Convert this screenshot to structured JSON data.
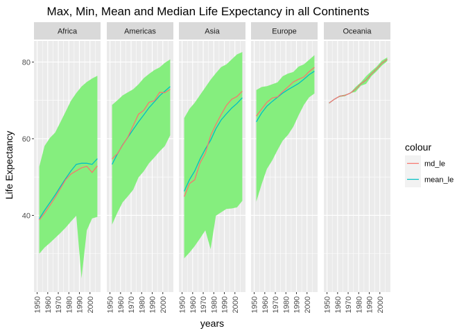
{
  "chart_data": {
    "type": "line",
    "title": "Max, Min, Mean and Median Life Expectancy in all Continents",
    "xlabel": "years",
    "ylabel": "Life Expectancy",
    "xlim": [
      1947,
      2010
    ],
    "ylim": [
      20,
      85.5
    ],
    "x_ticks": [
      1950,
      1960,
      1970,
      1980,
      1990,
      2000
    ],
    "y_ticks": [
      40,
      60,
      80
    ],
    "grid": true,
    "legend": {
      "title": "colour",
      "position": "right",
      "entries": [
        {
          "name": "md_le",
          "color": "#F8766D"
        },
        {
          "name": "mean_le",
          "color": "#00BFC4"
        }
      ]
    },
    "ribbon_color": "#85EE7E",
    "years": [
      1952,
      1957,
      1962,
      1967,
      1972,
      1977,
      1982,
      1987,
      1992,
      1997,
      2002,
      2007
    ],
    "panels": [
      {
        "name": "Africa",
        "max": [
          52.7,
          58.1,
          60.2,
          61.6,
          64.3,
          67.1,
          69.9,
          71.9,
          73.6,
          74.8,
          75.7,
          76.4
        ],
        "min": [
          30.0,
          31.6,
          32.8,
          34.1,
          35.4,
          36.8,
          38.4,
          39.9,
          23.6,
          36.1,
          39.2,
          39.6
        ],
        "mean": [
          39.1,
          41.3,
          43.3,
          45.3,
          47.5,
          49.6,
          51.6,
          53.3,
          53.6,
          53.6,
          53.3,
          54.8
        ],
        "median": [
          38.8,
          40.6,
          42.6,
          44.7,
          47.0,
          49.3,
          50.8,
          51.6,
          52.4,
          52.8,
          51.2,
          52.9
        ]
      },
      {
        "name": "Americas",
        "max": [
          68.8,
          70.0,
          71.3,
          72.1,
          72.9,
          74.2,
          75.8,
          76.9,
          77.9,
          78.6,
          79.8,
          80.7
        ],
        "min": [
          37.6,
          40.7,
          43.4,
          45.0,
          46.7,
          49.9,
          51.5,
          53.6,
          55.1,
          56.7,
          58.1,
          60.9
        ],
        "mean": [
          53.3,
          56.0,
          58.4,
          60.4,
          62.4,
          64.4,
          66.2,
          68.1,
          69.6,
          71.2,
          72.4,
          73.6
        ],
        "median": [
          54.7,
          56.1,
          58.3,
          60.5,
          63.4,
          66.4,
          67.4,
          69.5,
          69.9,
          72.1,
          72.0,
          72.9
        ]
      },
      {
        "name": "Asia",
        "max": [
          65.4,
          67.8,
          69.4,
          71.4,
          73.4,
          75.4,
          77.1,
          78.7,
          79.4,
          80.7,
          82.0,
          82.6
        ],
        "min": [
          28.8,
          30.3,
          32.0,
          34.0,
          36.1,
          31.2,
          39.9,
          40.8,
          41.7,
          41.8,
          42.1,
          43.8
        ],
        "mean": [
          46.3,
          49.3,
          51.6,
          54.7,
          57.3,
          59.6,
          62.6,
          64.9,
          66.5,
          68.0,
          69.2,
          70.7
        ],
        "median": [
          44.9,
          48.3,
          49.3,
          53.7,
          56.2,
          60.8,
          63.7,
          66.3,
          68.7,
          70.3,
          71.0,
          72.4
        ]
      },
      {
        "name": "Europe",
        "max": [
          72.7,
          73.5,
          73.7,
          74.2,
          74.7,
          76.3,
          77.0,
          77.4,
          78.8,
          79.4,
          80.6,
          81.8
        ],
        "min": [
          43.6,
          48.1,
          52.1,
          54.3,
          57.0,
          59.5,
          61.0,
          63.1,
          66.1,
          68.8,
          70.8,
          71.8
        ],
        "mean": [
          64.4,
          66.7,
          68.5,
          69.7,
          70.8,
          71.9,
          72.8,
          73.6,
          74.4,
          75.5,
          76.7,
          77.6
        ],
        "median": [
          65.9,
          67.7,
          69.5,
          70.6,
          70.9,
          72.3,
          73.5,
          74.8,
          75.5,
          76.1,
          77.5,
          78.6
        ]
      },
      {
        "name": "Oceania",
        "max": [
          69.4,
          70.3,
          71.2,
          71.5,
          71.9,
          73.5,
          74.7,
          76.3,
          77.6,
          78.8,
          80.4,
          81.2
        ],
        "min": [
          69.1,
          70.3,
          70.9,
          71.1,
          71.9,
          72.2,
          73.8,
          74.3,
          76.3,
          77.6,
          79.1,
          80.2
        ],
        "mean": [
          69.3,
          70.3,
          71.1,
          71.3,
          71.9,
          72.9,
          74.3,
          75.3,
          76.9,
          78.2,
          79.7,
          80.7
        ],
        "median": [
          69.3,
          70.3,
          71.1,
          71.3,
          71.9,
          72.9,
          74.3,
          75.3,
          76.9,
          78.2,
          79.7,
          80.7
        ]
      }
    ]
  }
}
